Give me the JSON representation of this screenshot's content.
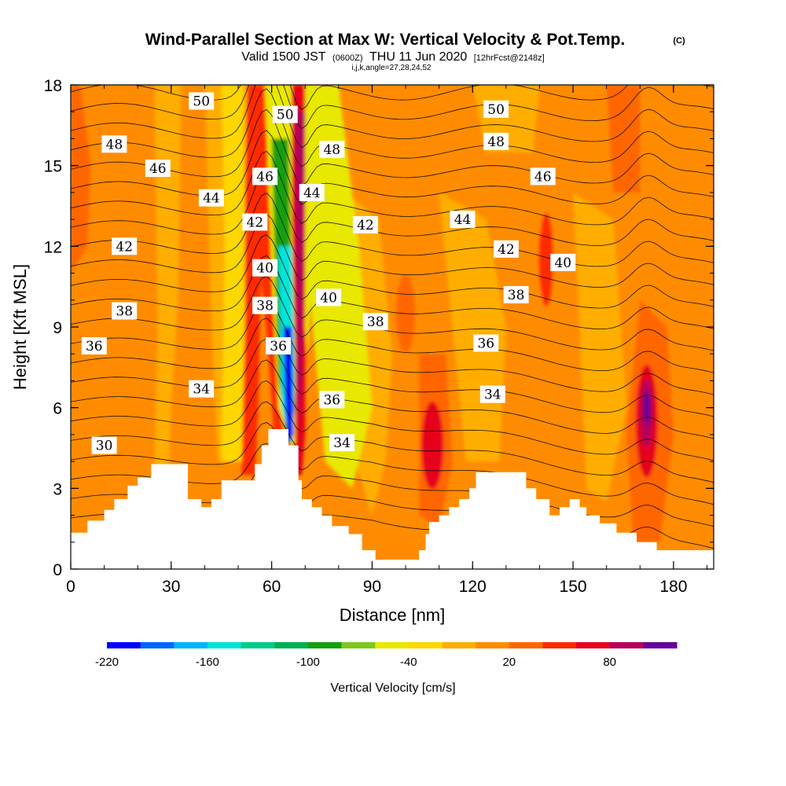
{
  "header": {
    "title": "Wind-Parallel Section at Max W: Vertical Velocity & Pot.Temp.",
    "title_unit": "(C)",
    "subtitle_a": "Valid 1500 JST",
    "subtitle_b": "(0600Z)",
    "subtitle_c": "THU 11 Jun 2020",
    "subtitle_d": "[12hrFcst@2148z]",
    "params": "i,j,k,angle=27,28,24,52"
  },
  "chart_data": {
    "type": "heatmap",
    "title": "Wind-Parallel Section at Max W: Vertical Velocity & Pot.Temp.",
    "xlabel": "Distance [nm]",
    "ylabel": "Height [Kft MSL]",
    "xlim": [
      0,
      192
    ],
    "ylim": [
      0,
      18
    ],
    "x_ticks": [
      0,
      30,
      60,
      90,
      120,
      150,
      180
    ],
    "y_ticks": [
      0,
      3,
      6,
      9,
      12,
      15,
      18
    ],
    "colorbar": {
      "title": "Vertical Velocity [cm/s]",
      "tick_labels": [
        "-220",
        "-160",
        "-100",
        "-40",
        "20",
        "80"
      ],
      "tick_values": [
        -220,
        -160,
        -100,
        -40,
        20,
        80
      ],
      "levels": [
        -220,
        -200,
        -180,
        -160,
        -140,
        -120,
        -100,
        -80,
        -60,
        -40,
        -20,
        0,
        20,
        40,
        60,
        80,
        100
      ],
      "colors": [
        "#0000ff",
        "#0066ff",
        "#00b3ff",
        "#00e5d9",
        "#00cc88",
        "#00b050",
        "#14a010",
        "#7ec81c",
        "#e8e800",
        "#ffd700",
        "#ffae00",
        "#ff8c00",
        "#ff6600",
        "#ff2a00",
        "#e6001e",
        "#b3005a",
        "#660099"
      ]
    },
    "wind_velocity_features": [
      {
        "desc": "strong downdraft core",
        "x": 65,
        "y_range": [
          4.6,
          12
        ],
        "min_value": -220
      },
      {
        "desc": "downdraft band",
        "x": 58,
        "y_range": [
          7,
          15
        ],
        "min_value": -100
      },
      {
        "desc": "updraft core",
        "x": 68,
        "y_range": [
          3.5,
          18
        ],
        "max_value": 100
      },
      {
        "desc": "updraft column",
        "x": 52,
        "y_range": [
          3.5,
          18
        ],
        "max_value": 60
      },
      {
        "desc": "updraft core",
        "x": 172,
        "y_range": [
          2,
          9
        ],
        "max_value": 100
      },
      {
        "desc": "updraft core",
        "x": 108,
        "y_range": [
          1.5,
          6
        ],
        "max_value": 60
      }
    ],
    "theta_contours_labels": [
      {
        "value": "50",
        "x": 39,
        "y": 17.4
      },
      {
        "value": "50",
        "x": 64,
        "y": 16.9
      },
      {
        "value": "50",
        "x": 127,
        "y": 17.1
      },
      {
        "value": "48",
        "x": 13,
        "y": 15.8
      },
      {
        "value": "48",
        "x": 78,
        "y": 15.6
      },
      {
        "value": "48",
        "x": 127,
        "y": 15.9
      },
      {
        "value": "46",
        "x": 26,
        "y": 14.9
      },
      {
        "value": "46",
        "x": 58,
        "y": 14.6
      },
      {
        "value": "46",
        "x": 141,
        "y": 14.6
      },
      {
        "value": "44",
        "x": 42,
        "y": 13.8
      },
      {
        "value": "44",
        "x": 72,
        "y": 14.0
      },
      {
        "value": "44",
        "x": 117,
        "y": 13.0
      },
      {
        "value": "42",
        "x": 16,
        "y": 12.0
      },
      {
        "value": "42",
        "x": 55,
        "y": 12.9
      },
      {
        "value": "42",
        "x": 88,
        "y": 12.8
      },
      {
        "value": "42",
        "x": 130,
        "y": 11.9
      },
      {
        "value": "40",
        "x": 58,
        "y": 11.2
      },
      {
        "value": "40",
        "x": 77,
        "y": 10.1
      },
      {
        "value": "40",
        "x": 147,
        "y": 11.4
      },
      {
        "value": "38",
        "x": 16,
        "y": 9.6
      },
      {
        "value": "38",
        "x": 58,
        "y": 9.8
      },
      {
        "value": "38",
        "x": 91,
        "y": 9.2
      },
      {
        "value": "38",
        "x": 133,
        "y": 10.2
      },
      {
        "value": "36",
        "x": 7,
        "y": 8.3
      },
      {
        "value": "36",
        "x": 62,
        "y": 8.3
      },
      {
        "value": "36",
        "x": 78,
        "y": 6.3
      },
      {
        "value": "36",
        "x": 124,
        "y": 8.4
      },
      {
        "value": "34",
        "x": 39,
        "y": 6.7
      },
      {
        "value": "34",
        "x": 81,
        "y": 4.7
      },
      {
        "value": "34",
        "x": 126,
        "y": 6.5
      },
      {
        "value": "30",
        "x": 10,
        "y": 4.6
      }
    ],
    "terrain": [
      [
        0,
        1.35
      ],
      [
        5,
        1.35
      ],
      [
        5,
        1.8
      ],
      [
        10,
        1.8
      ],
      [
        10,
        2.2
      ],
      [
        13,
        2.2
      ],
      [
        13,
        2.6
      ],
      [
        17,
        2.6
      ],
      [
        17,
        3.1
      ],
      [
        20,
        3.1
      ],
      [
        20,
        3.4
      ],
      [
        24,
        3.4
      ],
      [
        24,
        3.9
      ],
      [
        35,
        3.9
      ],
      [
        35,
        2.6
      ],
      [
        39,
        2.6
      ],
      [
        39,
        2.3
      ],
      [
        42,
        2.3
      ],
      [
        42,
        2.6
      ],
      [
        45,
        2.6
      ],
      [
        45,
        3.3
      ],
      [
        55,
        3.3
      ],
      [
        55,
        3.9
      ],
      [
        57,
        3.9
      ],
      [
        57,
        4.6
      ],
      [
        59,
        4.6
      ],
      [
        59,
        5.2
      ],
      [
        65,
        5.2
      ],
      [
        65,
        4.6
      ],
      [
        68,
        4.6
      ],
      [
        68,
        3.3
      ],
      [
        69,
        3.3
      ],
      [
        69,
        2.6
      ],
      [
        72,
        2.6
      ],
      [
        72,
        2.3
      ],
      [
        75,
        2.3
      ],
      [
        75,
        2.0
      ],
      [
        78,
        2.0
      ],
      [
        78,
        1.6
      ],
      [
        83,
        1.6
      ],
      [
        83,
        1.3
      ],
      [
        87,
        1.3
      ],
      [
        87,
        0.7
      ],
      [
        91,
        0.7
      ],
      [
        91,
        0.35
      ],
      [
        104,
        0.35
      ],
      [
        104,
        0.7
      ],
      [
        106,
        0.7
      ],
      [
        106,
        1.3
      ],
      [
        107,
        1.3
      ],
      [
        107,
        1.75
      ],
      [
        110,
        1.75
      ],
      [
        110,
        2.0
      ],
      [
        113,
        2.0
      ],
      [
        113,
        2.3
      ],
      [
        116,
        2.3
      ],
      [
        116,
        2.6
      ],
      [
        119,
        2.6
      ],
      [
        119,
        3.0
      ],
      [
        121,
        3.0
      ],
      [
        121,
        3.6
      ],
      [
        136,
        3.6
      ],
      [
        136,
        3.0
      ],
      [
        139,
        3.0
      ],
      [
        139,
        2.6
      ],
      [
        143,
        2.6
      ],
      [
        143,
        2.0
      ],
      [
        146,
        2.0
      ],
      [
        146,
        2.3
      ],
      [
        149,
        2.3
      ],
      [
        149,
        2.6
      ],
      [
        152,
        2.6
      ],
      [
        152,
        2.3
      ],
      [
        154,
        2.3
      ],
      [
        154,
        2.0
      ],
      [
        158,
        2.0
      ],
      [
        158,
        1.7
      ],
      [
        163,
        1.7
      ],
      [
        163,
        1.35
      ],
      [
        169,
        1.35
      ],
      [
        169,
        1.0
      ],
      [
        175,
        1.0
      ],
      [
        175,
        0.7
      ],
      [
        192,
        0.7
      ],
      [
        192,
        0
      ],
      [
        0,
        0
      ]
    ]
  }
}
